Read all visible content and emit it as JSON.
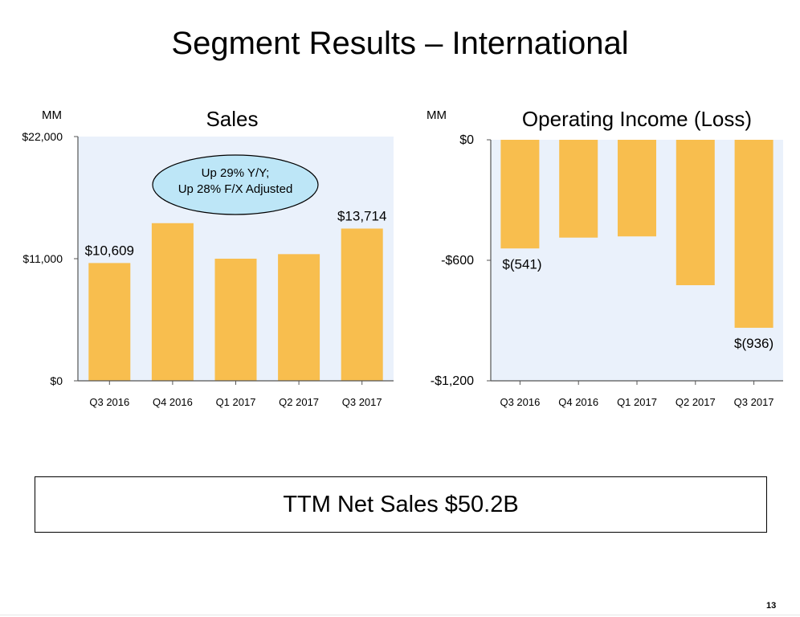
{
  "title": "Segment Results – International",
  "chart_data": [
    {
      "type": "bar",
      "title": "Sales",
      "unit_label": "MM",
      "categories": [
        "Q3 2016",
        "Q4 2016",
        "Q1 2017",
        "Q2 2017",
        "Q3 2017"
      ],
      "values": [
        10609,
        14200,
        11000,
        11410,
        13714
      ],
      "ylim": [
        0,
        22000
      ],
      "y_ticks": [
        0,
        11000,
        22000
      ],
      "y_tick_labels": [
        "$0",
        "$11,000",
        "$22,000"
      ],
      "data_labels": [
        "$10,609",
        "",
        "",
        "",
        "$13,714"
      ],
      "callout": [
        "Up 29% Y/Y;",
        "Up 28% F/X Adjusted"
      ],
      "bar_color": "#F8BE4E",
      "plot_background": "#EAF1FB",
      "callout_fill": "#BDE6F7"
    },
    {
      "type": "bar",
      "title": "Operating Income (Loss)",
      "unit_label": "MM",
      "categories": [
        "Q3 2016",
        "Q4 2016",
        "Q1 2017",
        "Q2 2017",
        "Q3 2017"
      ],
      "values": [
        -541,
        -487,
        -481,
        -724,
        -936
      ],
      "ylim": [
        -1200,
        0
      ],
      "y_ticks": [
        0,
        -600,
        -1200
      ],
      "y_tick_labels": [
        "$0",
        "-$600",
        "-$1,200"
      ],
      "data_labels": [
        "$(541)",
        "",
        "",
        "",
        "$(936)"
      ],
      "bar_color": "#F8BE4E",
      "plot_background": "#EAF1FB"
    }
  ],
  "footer_box": "TTM Net Sales $50.2B",
  "page_number": "13"
}
